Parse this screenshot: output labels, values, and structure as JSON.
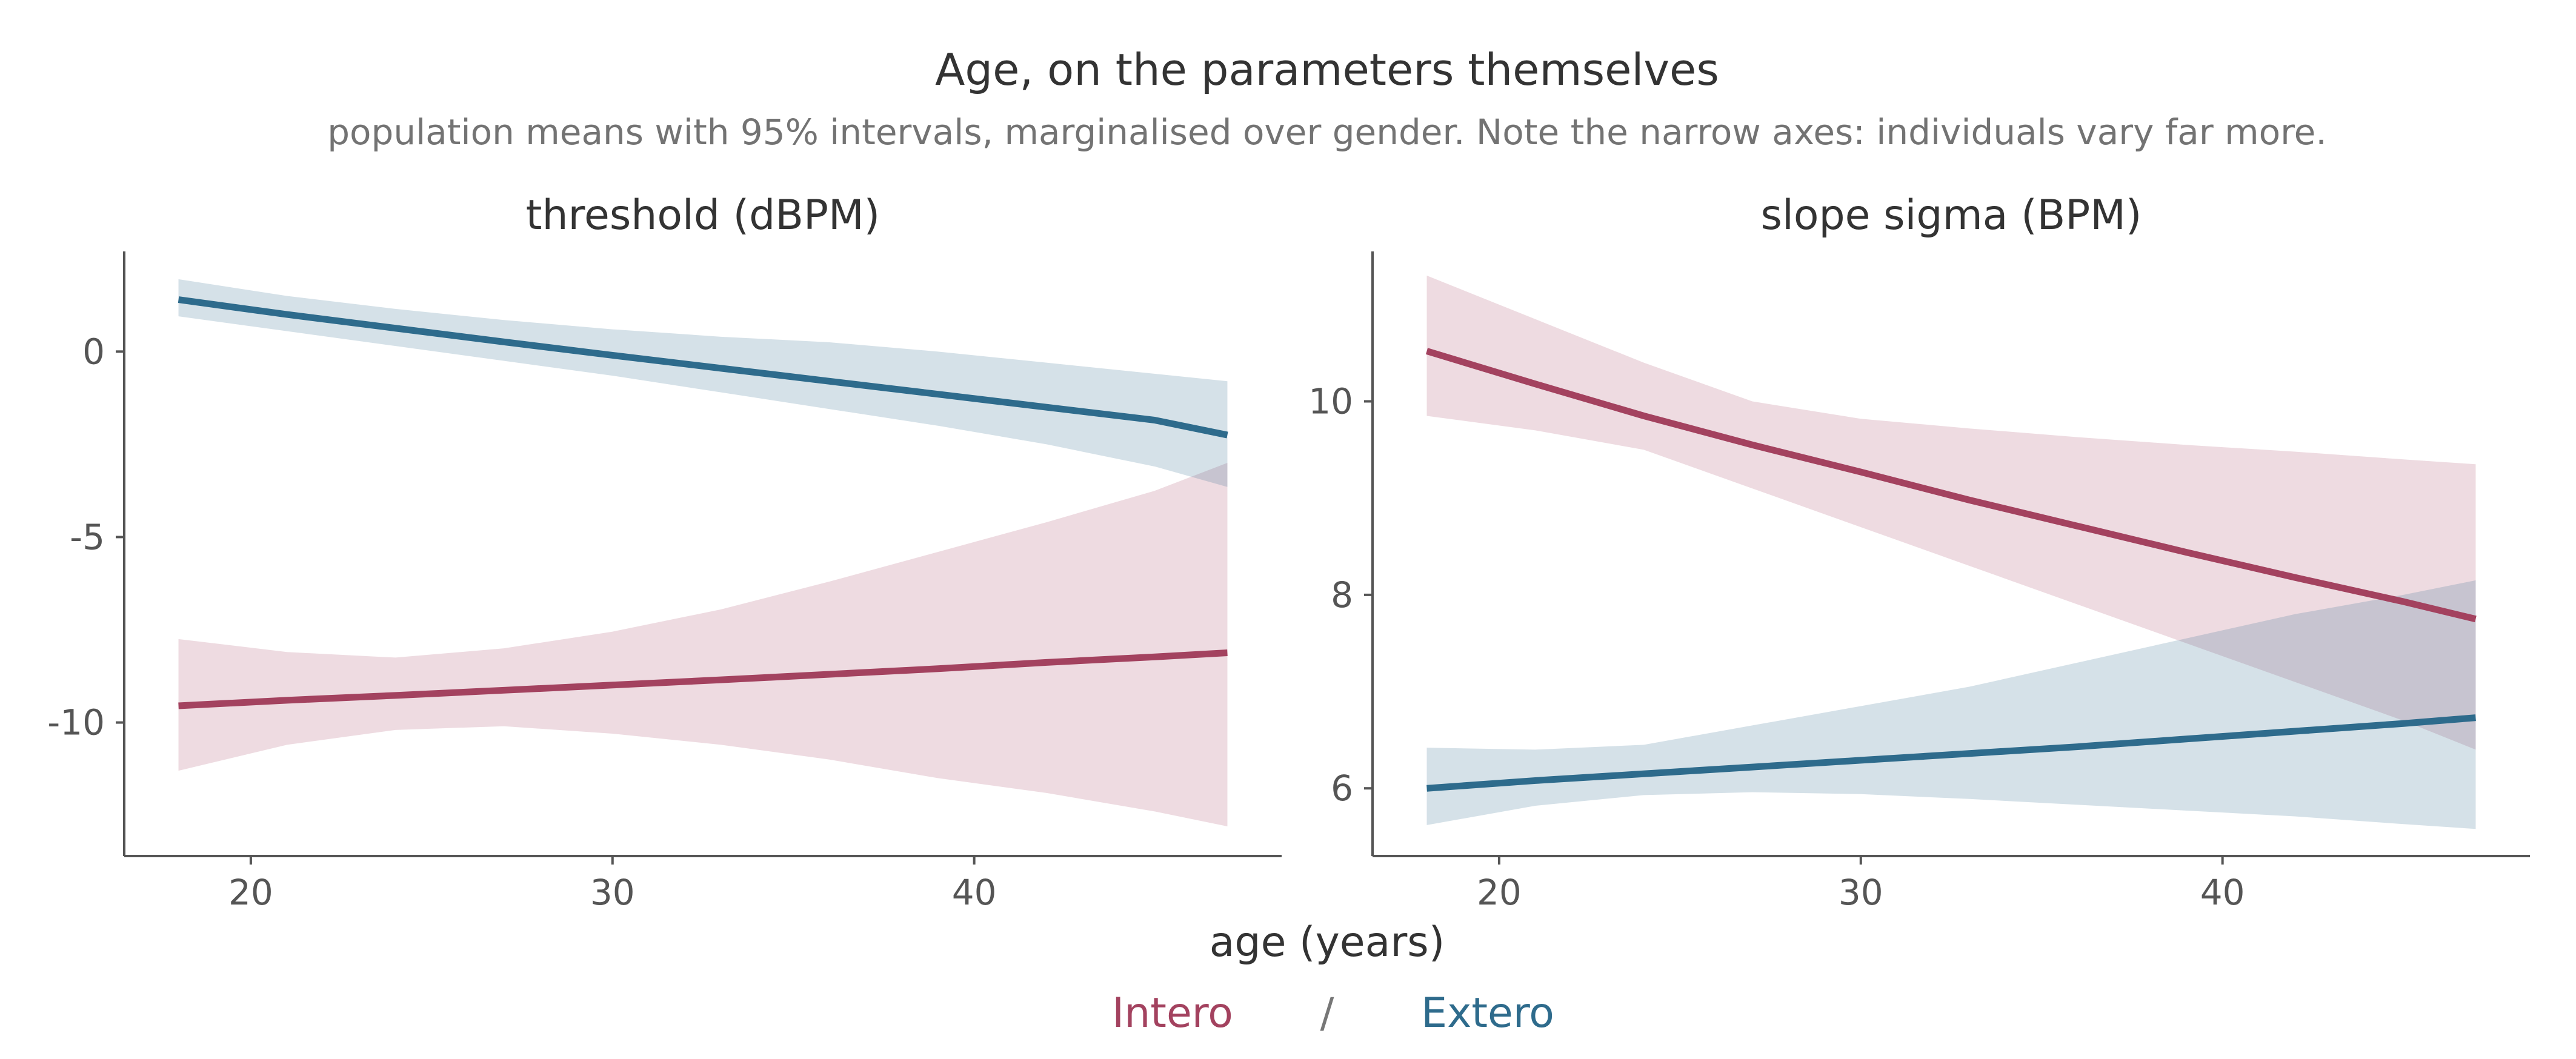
{
  "title": "Age, on the parameters themselves",
  "subtitle": "population means with 95% intervals, marginalised over gender. Note the narrow axes: individuals vary far more.",
  "xlabel": "age (years)",
  "legend": {
    "position": "bottom-center",
    "separator": "/",
    "entries": [
      {
        "label": "Intero",
        "color": "#a3425f"
      },
      {
        "label": "Extero",
        "color": "#2e6b8c"
      }
    ]
  },
  "chart_data": [
    {
      "type": "line",
      "title": "threshold (dBPM)",
      "xlim": [
        16.5,
        48.5
      ],
      "ylim": [
        -13.6,
        2.7
      ],
      "xticks": [
        20,
        30,
        40
      ],
      "yticks": [
        0,
        -5,
        -10
      ],
      "ytick_labels": [
        "0",
        "-5",
        "-10"
      ],
      "grid": false,
      "series": [
        {
          "name": "Intero",
          "color": "#a3425f",
          "x": [
            18,
            21,
            24,
            27,
            30,
            33,
            36,
            39,
            42,
            45,
            47
          ],
          "y": [
            -9.55,
            -9.4,
            -9.27,
            -9.13,
            -8.99,
            -8.85,
            -8.7,
            -8.55,
            -8.38,
            -8.23,
            -8.12
          ],
          "lower": [
            -11.3,
            -10.6,
            -10.2,
            -10.1,
            -10.3,
            -10.6,
            -11.0,
            -11.5,
            -11.9,
            -12.4,
            -12.8
          ],
          "upper": [
            -7.75,
            -8.1,
            -8.25,
            -8.0,
            -7.55,
            -6.95,
            -6.2,
            -5.4,
            -4.6,
            -3.75,
            -3.0
          ]
        },
        {
          "name": "Extero",
          "color": "#2e6b8c",
          "x": [
            18,
            21,
            24,
            27,
            30,
            33,
            36,
            39,
            42,
            45,
            47
          ],
          "y": [
            1.4,
            1.0,
            0.63,
            0.26,
            -0.1,
            -0.45,
            -0.8,
            -1.15,
            -1.5,
            -1.85,
            -2.25
          ],
          "lower": [
            0.95,
            0.55,
            0.15,
            -0.25,
            -0.65,
            -1.1,
            -1.55,
            -2.0,
            -2.5,
            -3.1,
            -3.65
          ],
          "upper": [
            1.95,
            1.5,
            1.15,
            0.85,
            0.6,
            0.4,
            0.25,
            0.0,
            -0.3,
            -0.6,
            -0.8
          ]
        }
      ]
    },
    {
      "type": "line",
      "title": "slope sigma (BPM)",
      "xlim": [
        16.5,
        48.5
      ],
      "ylim": [
        5.3,
        11.55
      ],
      "xticks": [
        20,
        30,
        40
      ],
      "yticks": [
        6,
        8,
        10
      ],
      "ytick_labels": [
        "6",
        "8",
        "10"
      ],
      "grid": false,
      "series": [
        {
          "name": "Intero",
          "color": "#a3425f",
          "x": [
            18,
            21,
            24,
            27,
            30,
            33,
            36,
            39,
            42,
            45,
            47
          ],
          "y": [
            10.52,
            10.18,
            9.85,
            9.55,
            9.27,
            8.98,
            8.71,
            8.44,
            8.18,
            7.93,
            7.75
          ],
          "lower": [
            9.85,
            9.7,
            9.5,
            9.1,
            8.7,
            8.3,
            7.9,
            7.5,
            7.1,
            6.7,
            6.4
          ],
          "upper": [
            11.3,
            10.85,
            10.4,
            10.0,
            9.82,
            9.72,
            9.63,
            9.55,
            9.48,
            9.4,
            9.35
          ]
        },
        {
          "name": "Extero",
          "color": "#2e6b8c",
          "x": [
            18,
            21,
            24,
            27,
            30,
            33,
            36,
            39,
            42,
            45,
            47
          ],
          "y": [
            6.0,
            6.08,
            6.15,
            6.22,
            6.29,
            6.36,
            6.43,
            6.51,
            6.59,
            6.67,
            6.73
          ],
          "lower": [
            5.62,
            5.82,
            5.93,
            5.96,
            5.94,
            5.89,
            5.83,
            5.77,
            5.71,
            5.63,
            5.58
          ],
          "upper": [
            6.42,
            6.4,
            6.45,
            6.65,
            6.85,
            7.05,
            7.3,
            7.55,
            7.8,
            8.0,
            8.15
          ]
        }
      ]
    }
  ]
}
